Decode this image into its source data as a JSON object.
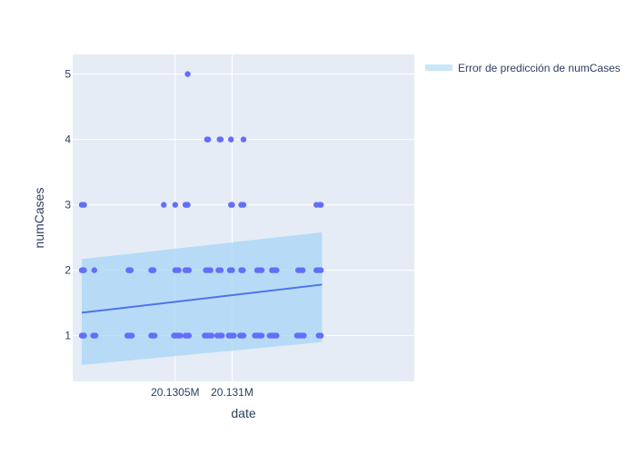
{
  "chart_data": {
    "type": "scatter",
    "xlabel": "date",
    "ylabel": "numCases",
    "x_range": [
      20129600,
      20132600
    ],
    "ylim": [
      0.3,
      5.3
    ],
    "x_ticks": [
      {
        "value": 20130500,
        "label": "20.1305M"
      },
      {
        "value": 20131000,
        "label": "20.131M"
      }
    ],
    "y_ticks": [
      1,
      2,
      3,
      4,
      5
    ],
    "grid": true,
    "legend_position": "top-right",
    "colors": {
      "points": "#636efa",
      "trend_line": "#4a73f0",
      "band_fill": "#a7d6f5",
      "plot_background": "#e5ecf6",
      "grid": "#ffffff",
      "text": "#2a3f5f"
    },
    "band": {
      "name": "Error de predicción de numCases",
      "x": [
        20129680,
        20131790
      ],
      "lower": [
        0.55,
        0.9
      ],
      "upper": [
        2.17,
        2.58
      ]
    },
    "trend": {
      "x": [
        20129680,
        20131790
      ],
      "y": [
        1.35,
        1.78
      ]
    },
    "points": [
      {
        "x": 20129680,
        "y": 3
      },
      {
        "x": 20129700,
        "y": 3
      },
      {
        "x": 20129680,
        "y": 2
      },
      {
        "x": 20129690,
        "y": 2
      },
      {
        "x": 20129700,
        "y": 2
      },
      {
        "x": 20129680,
        "y": 1
      },
      {
        "x": 20129690,
        "y": 1
      },
      {
        "x": 20129700,
        "y": 1
      },
      {
        "x": 20129790,
        "y": 2
      },
      {
        "x": 20129780,
        "y": 1
      },
      {
        "x": 20129790,
        "y": 1
      },
      {
        "x": 20129800,
        "y": 1
      },
      {
        "x": 20130090,
        "y": 2
      },
      {
        "x": 20130100,
        "y": 2
      },
      {
        "x": 20130110,
        "y": 2
      },
      {
        "x": 20130080,
        "y": 1
      },
      {
        "x": 20130090,
        "y": 1
      },
      {
        "x": 20130100,
        "y": 1
      },
      {
        "x": 20130110,
        "y": 1
      },
      {
        "x": 20130120,
        "y": 1
      },
      {
        "x": 20130400,
        "y": 3
      },
      {
        "x": 20130290,
        "y": 2
      },
      {
        "x": 20130300,
        "y": 2
      },
      {
        "x": 20130310,
        "y": 2
      },
      {
        "x": 20130290,
        "y": 1
      },
      {
        "x": 20130300,
        "y": 1
      },
      {
        "x": 20130310,
        "y": 1
      },
      {
        "x": 20130320,
        "y": 1
      },
      {
        "x": 20130500,
        "y": 3
      },
      {
        "x": 20130500,
        "y": 2
      },
      {
        "x": 20130515,
        "y": 2
      },
      {
        "x": 20130530,
        "y": 2
      },
      {
        "x": 20130490,
        "y": 1
      },
      {
        "x": 20130500,
        "y": 1
      },
      {
        "x": 20130515,
        "y": 1
      },
      {
        "x": 20130530,
        "y": 1
      },
      {
        "x": 20130545,
        "y": 1
      },
      {
        "x": 20130610,
        "y": 5
      },
      {
        "x": 20130590,
        "y": 3
      },
      {
        "x": 20130600,
        "y": 3
      },
      {
        "x": 20130610,
        "y": 3
      },
      {
        "x": 20130590,
        "y": 2
      },
      {
        "x": 20130605,
        "y": 2
      },
      {
        "x": 20130620,
        "y": 2
      },
      {
        "x": 20130590,
        "y": 1
      },
      {
        "x": 20130605,
        "y": 1
      },
      {
        "x": 20130620,
        "y": 1
      },
      {
        "x": 20130780,
        "y": 4
      },
      {
        "x": 20130790,
        "y": 4
      },
      {
        "x": 20130770,
        "y": 2
      },
      {
        "x": 20130790,
        "y": 2
      },
      {
        "x": 20130810,
        "y": 2
      },
      {
        "x": 20130760,
        "y": 1
      },
      {
        "x": 20130780,
        "y": 1
      },
      {
        "x": 20130800,
        "y": 1
      },
      {
        "x": 20130820,
        "y": 1
      },
      {
        "x": 20130890,
        "y": 4
      },
      {
        "x": 20130900,
        "y": 4
      },
      {
        "x": 20130880,
        "y": 2
      },
      {
        "x": 20130900,
        "y": 2
      },
      {
        "x": 20130870,
        "y": 1
      },
      {
        "x": 20130890,
        "y": 1
      },
      {
        "x": 20130910,
        "y": 1
      },
      {
        "x": 20130990,
        "y": 4
      },
      {
        "x": 20130990,
        "y": 3
      },
      {
        "x": 20131000,
        "y": 3
      },
      {
        "x": 20130980,
        "y": 2
      },
      {
        "x": 20131000,
        "y": 2
      },
      {
        "x": 20130970,
        "y": 1
      },
      {
        "x": 20130985,
        "y": 1
      },
      {
        "x": 20131000,
        "y": 1
      },
      {
        "x": 20131015,
        "y": 1
      },
      {
        "x": 20131100,
        "y": 4
      },
      {
        "x": 20131080,
        "y": 3
      },
      {
        "x": 20131100,
        "y": 3
      },
      {
        "x": 20131080,
        "y": 2
      },
      {
        "x": 20131095,
        "y": 2
      },
      {
        "x": 20131070,
        "y": 1
      },
      {
        "x": 20131085,
        "y": 1
      },
      {
        "x": 20131100,
        "y": 1
      },
      {
        "x": 20131220,
        "y": 2
      },
      {
        "x": 20131240,
        "y": 2
      },
      {
        "x": 20131260,
        "y": 2
      },
      {
        "x": 20131200,
        "y": 1
      },
      {
        "x": 20131220,
        "y": 1
      },
      {
        "x": 20131240,
        "y": 1
      },
      {
        "x": 20131260,
        "y": 1
      },
      {
        "x": 20131350,
        "y": 2
      },
      {
        "x": 20131370,
        "y": 2
      },
      {
        "x": 20131390,
        "y": 2
      },
      {
        "x": 20131330,
        "y": 1
      },
      {
        "x": 20131350,
        "y": 1
      },
      {
        "x": 20131370,
        "y": 1
      },
      {
        "x": 20131390,
        "y": 1
      },
      {
        "x": 20131580,
        "y": 2
      },
      {
        "x": 20131600,
        "y": 2
      },
      {
        "x": 20131620,
        "y": 2
      },
      {
        "x": 20131570,
        "y": 1
      },
      {
        "x": 20131590,
        "y": 1
      },
      {
        "x": 20131610,
        "y": 1
      },
      {
        "x": 20131630,
        "y": 1
      },
      {
        "x": 20131740,
        "y": 3
      },
      {
        "x": 20131770,
        "y": 3
      },
      {
        "x": 20131780,
        "y": 3
      },
      {
        "x": 20131740,
        "y": 2
      },
      {
        "x": 20131760,
        "y": 2
      },
      {
        "x": 20131780,
        "y": 2
      },
      {
        "x": 20131760,
        "y": 1
      },
      {
        "x": 20131780,
        "y": 1
      }
    ]
  }
}
